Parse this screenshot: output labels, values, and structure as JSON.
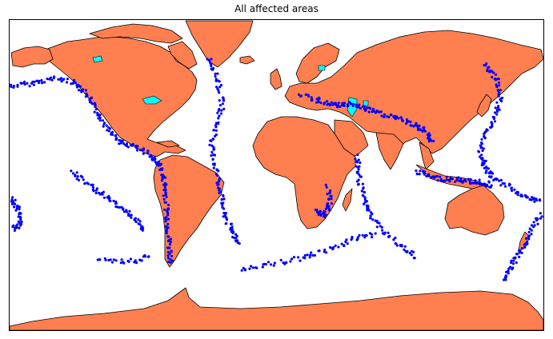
{
  "title": "All affected areas",
  "colors": {
    "land": "#ff7f50",
    "lake": "#00ffff",
    "ocean": "#ffffff",
    "coastline": "#000000",
    "quake_marker": "#0000ff"
  },
  "legend": [],
  "marker_icon": "filled-circle-icon",
  "projection": "mercator"
}
